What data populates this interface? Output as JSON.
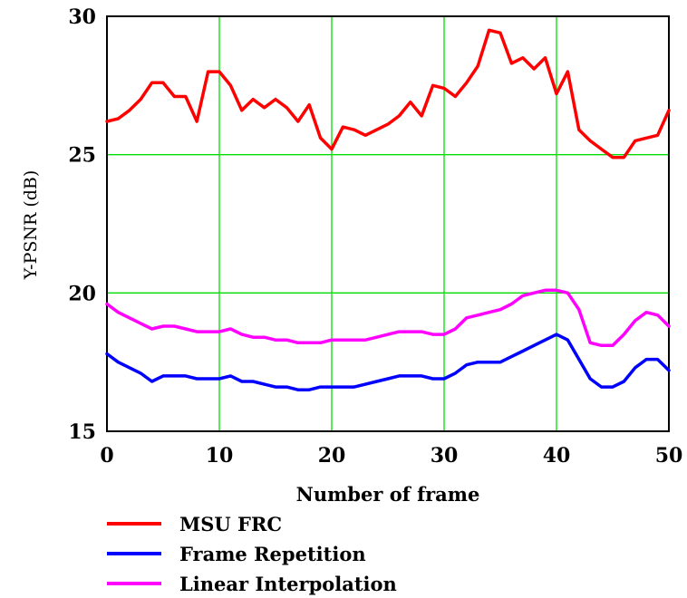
{
  "chart_data": {
    "type": "line",
    "xlabel": "Number of frame",
    "ylabel": "Y-PSNR (dB)",
    "xlim": [
      0,
      50
    ],
    "ylim": [
      15,
      30
    ],
    "xticks": [
      "0",
      "10",
      "20",
      "30",
      "40",
      "50"
    ],
    "yticks": [
      "15",
      "20",
      "25",
      "30"
    ],
    "grid": true,
    "grid_color": "#00dd00",
    "legend_position": "bottom",
    "x": [
      0,
      1,
      2,
      3,
      4,
      5,
      6,
      7,
      8,
      9,
      10,
      11,
      12,
      13,
      14,
      15,
      16,
      17,
      18,
      19,
      20,
      21,
      22,
      23,
      24,
      25,
      26,
      27,
      28,
      29,
      30,
      31,
      32,
      33,
      34,
      35,
      36,
      37,
      38,
      39,
      40,
      41,
      42,
      43,
      44,
      45,
      46,
      47,
      48,
      49,
      50
    ],
    "series": [
      {
        "name": "MSU FRC",
        "color": "#ff0000",
        "values": [
          26.2,
          26.3,
          26.6,
          27.0,
          27.6,
          27.6,
          27.1,
          27.1,
          26.2,
          28.0,
          28.0,
          27.5,
          26.6,
          27.0,
          26.7,
          27.0,
          26.7,
          26.2,
          26.8,
          25.6,
          25.2,
          26.0,
          25.9,
          25.7,
          25.9,
          26.1,
          26.4,
          26.9,
          26.4,
          27.5,
          27.4,
          27.1,
          27.6,
          28.2,
          29.5,
          29.4,
          28.3,
          28.5,
          28.1,
          28.5,
          27.2,
          28.0,
          25.9,
          25.5,
          25.2,
          24.9,
          24.9,
          25.5,
          25.6,
          25.7,
          26.6
        ]
      },
      {
        "name": "Frame Repetition",
        "color": "#0000ff",
        "values": [
          17.8,
          17.5,
          17.3,
          17.1,
          16.8,
          17.0,
          17.0,
          17.0,
          16.9,
          16.9,
          16.9,
          17.0,
          16.8,
          16.8,
          16.7,
          16.6,
          16.6,
          16.5,
          16.5,
          16.6,
          16.6,
          16.6,
          16.6,
          16.7,
          16.8,
          16.9,
          17.0,
          17.0,
          17.0,
          16.9,
          16.9,
          17.1,
          17.4,
          17.5,
          17.5,
          17.5,
          17.7,
          17.9,
          18.1,
          18.3,
          18.5,
          18.3,
          17.6,
          16.9,
          16.6,
          16.6,
          16.8,
          17.3,
          17.6,
          17.6,
          17.2
        ]
      },
      {
        "name": "Linear Interpolation",
        "color": "#ff00ff",
        "values": [
          19.6,
          19.3,
          19.1,
          18.9,
          18.7,
          18.8,
          18.8,
          18.7,
          18.6,
          18.6,
          18.6,
          18.7,
          18.5,
          18.4,
          18.4,
          18.3,
          18.3,
          18.2,
          18.2,
          18.2,
          18.3,
          18.3,
          18.3,
          18.3,
          18.4,
          18.5,
          18.6,
          18.6,
          18.6,
          18.5,
          18.5,
          18.7,
          19.1,
          19.2,
          19.3,
          19.4,
          19.6,
          19.9,
          20.0,
          20.1,
          20.1,
          20.0,
          19.4,
          18.2,
          18.1,
          18.1,
          18.5,
          19.0,
          19.3,
          19.2,
          18.8
        ]
      }
    ]
  }
}
